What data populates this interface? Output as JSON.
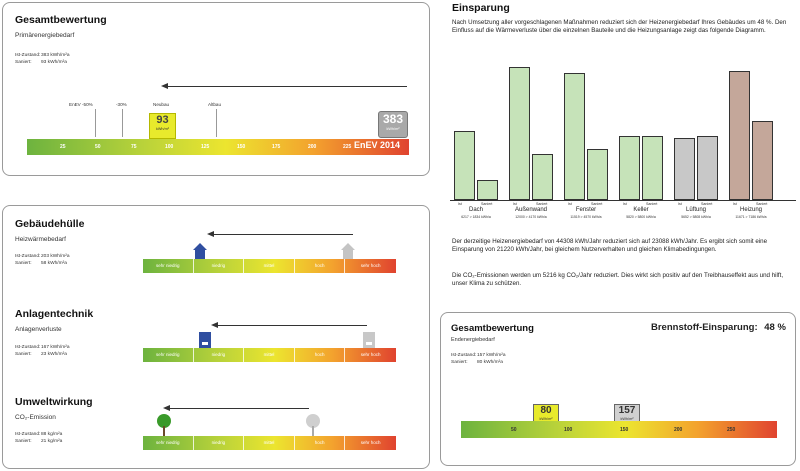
{
  "top_panel": {
    "title": "Gesamtbewertung",
    "subtitle": "Primärenergiebedarf",
    "rows": [
      {
        "label": "Ist-Zustand:",
        "value": "383  kWh/m²a"
      },
      {
        "label": "Saniert:",
        "value": "93  kWh/m²a"
      }
    ],
    "markers": [
      "EnEV -50%",
      "-30%",
      "Neubau",
      "Altbau"
    ],
    "scale": [
      "25",
      "50",
      "75",
      "100",
      "125",
      "150",
      "175",
      "200",
      "225"
    ],
    "enev_label": "EnEV 2014",
    "saniert": {
      "value": "93",
      "unit": "kWh/m²",
      "position": 0.34
    },
    "ist": {
      "value": "383",
      "unit": "kWh/m²",
      "position": 1.0
    }
  },
  "left_panel": {
    "sections": [
      {
        "title": "Gebäudehülle",
        "subtitle": "Heizwärmebedarf",
        "rows": [
          {
            "label": "Ist-Zustand:",
            "value": "203  kWh/m²a"
          },
          {
            "label": "Saniert:",
            "value": "58  kWh/m²a"
          }
        ],
        "icon": "house-icon",
        "saniert_position": 0.22,
        "ist_position": 0.82
      },
      {
        "title": "Anlagentechnik",
        "subtitle": "Anlagenverluste",
        "rows": [
          {
            "label": "Ist-Zustand:",
            "value": "167  kWh/m²a"
          },
          {
            "label": "Saniert:",
            "value": "23  kWh/m²a"
          }
        ],
        "icon": "boiler-icon",
        "saniert_position": 0.25,
        "ist_position": 0.88
      },
      {
        "title": "Umweltwirkung",
        "subtitle": "CO₂-Emission",
        "rows": [
          {
            "label": "Ist-Zustand:",
            "value": "88  kg/m²a"
          },
          {
            "label": "Saniert:",
            "value": "21  kg/m²a"
          }
        ],
        "icon": "tree-icon",
        "saniert_position": 0.08,
        "ist_position": 0.67
      }
    ],
    "bar_segments": [
      "sehr niedrig",
      "niedrig",
      "mittel",
      "hoch",
      "sehr hoch"
    ]
  },
  "einsparung": {
    "title": "Einsparung",
    "intro": "Nach Umsetzung aller vorgeschlagenen Maßnahmen reduziert sich der Heizenergiebedarf Ihres Gebäudes um 48 %. Den Einfluss auf die Wärmeverluste über die einzelnen Bauteile und die Heizungsanlage zeigt das folgende Diagramm.",
    "para2": "Der derzeitige Heizenergiebedarf von 44308 kWh/Jahr reduziert sich auf 23088 kWh/Jahr. Es ergibt sich somit eine Einsparung von 21220 kWh/Jahr, bei gleichem Nutzerverhalten und gleichen Klimabedingungen.",
    "para3": "Die CO₂-Emissionen werden um 5216 kg CO₂/Jahr reduziert. Dies wirkt sich positiv auf den Treibhauseffekt aus und hilft, unser Klima zu schützen.",
    "bar_labels": [
      "Ist",
      "Saniert"
    ]
  },
  "chart_data": {
    "type": "bar",
    "categories": [
      "Dach",
      "Außenwand",
      "Fenster",
      "Keller",
      "Lüftung",
      "Heizung"
    ],
    "series": [
      {
        "name": "Ist",
        "values": [
          6217,
          12000,
          11519,
          5820,
          5652,
          11671
        ]
      },
      {
        "name": "Saniert",
        "values": [
          1834,
          4170,
          4570,
          5800,
          5808,
          7186
        ]
      }
    ],
    "value_labels": [
      "6217 > 1834 kWh/a",
      "12000 > 4170 kWh/a",
      "11519 > 4570 kWh/a",
      "5820 > 5800 kWh/a",
      "5652 > 5808 kWh/a",
      "11671 > 7186 kWh/a"
    ],
    "colors": {
      "green": "#c6e3b9",
      "gray": "#c8c8c8",
      "brown": "#c4a79a"
    }
  },
  "bottom_panel": {
    "title": "Gesamtbewertung",
    "fuel_label": "Brennstoff-Einsparung:",
    "fuel_value": "48 %",
    "subtitle": "Endenergiebedarf",
    "rows": [
      {
        "label": "Ist-Zustand:",
        "value": "157  kWh/m²a"
      },
      {
        "label": "Saniert:",
        "value": "80  kWh/m²a"
      }
    ],
    "scale": [
      "50",
      "100",
      "150",
      "200",
      "250"
    ],
    "saniert": {
      "value": "80",
      "unit": "kWh/m²",
      "position": 0.27
    },
    "ist": {
      "value": "157",
      "unit": "kWh/m²",
      "position": 0.52
    }
  }
}
